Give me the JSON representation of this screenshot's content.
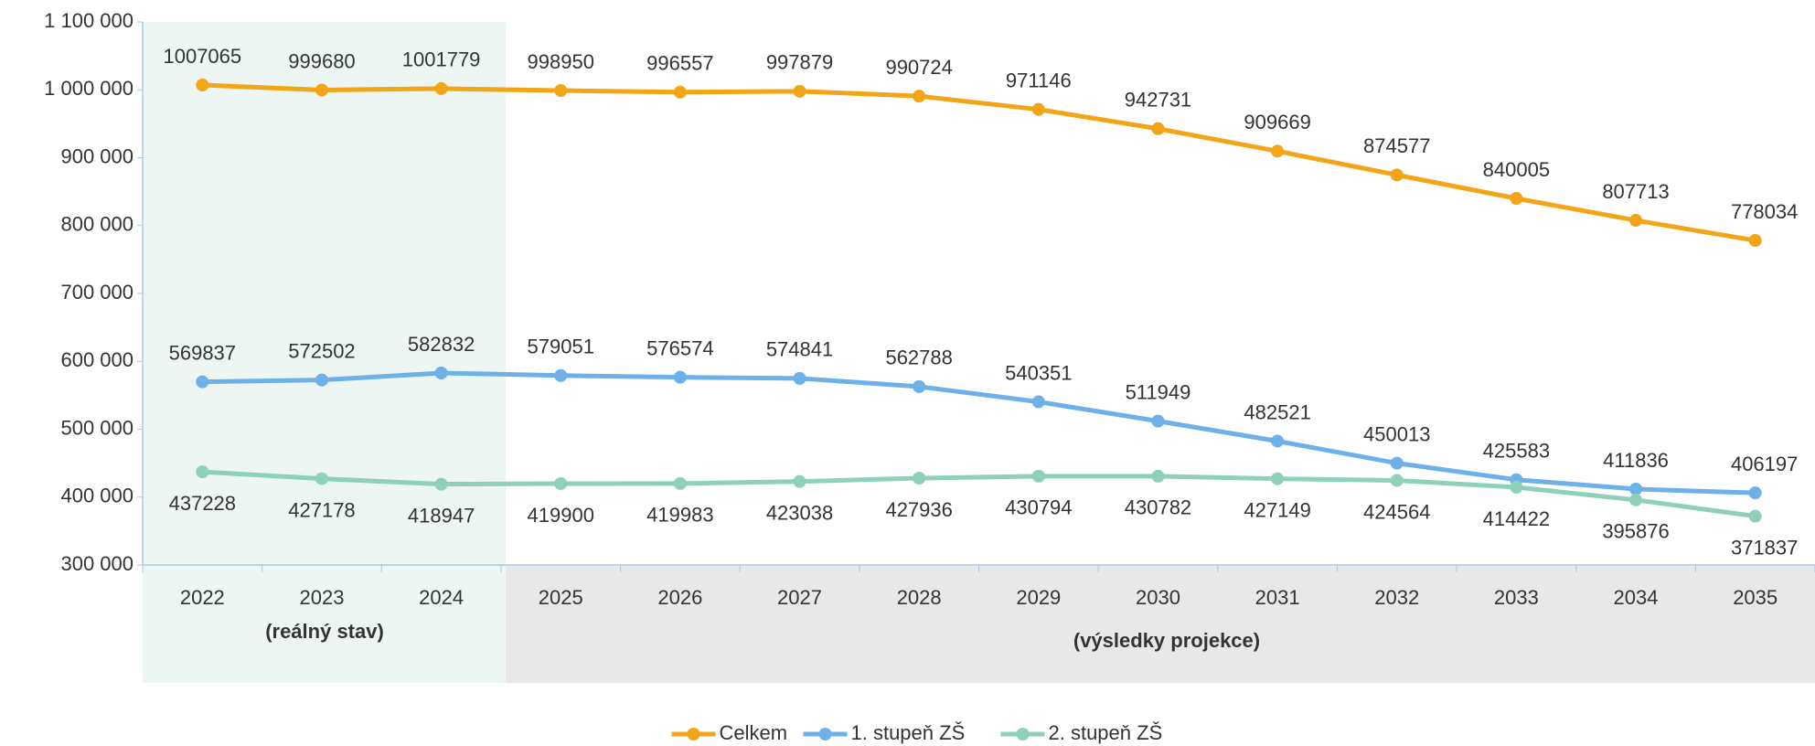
{
  "chart_data": {
    "type": "line",
    "categories": [
      "2022",
      "2023",
      "2024",
      "2025",
      "2026",
      "2027",
      "2028",
      "2029",
      "2030",
      "2031",
      "2032",
      "2033",
      "2034",
      "2035"
    ],
    "series": [
      {
        "name": "Celkem",
        "color": "#f2a516",
        "values": [
          1007065,
          999680,
          1001779,
          998950,
          996557,
          997879,
          990724,
          971146,
          942731,
          909669,
          874577,
          840005,
          807713,
          778034
        ]
      },
      {
        "name": "1. stupeň ZŠ",
        "color": "#6eb0e8",
        "values": [
          569837,
          572502,
          582832,
          579051,
          576574,
          574841,
          562788,
          540351,
          511949,
          482521,
          450013,
          425583,
          411836,
          406197
        ]
      },
      {
        "name": "2. stupeň ZŠ",
        "color": "#8fd0b8",
        "values": [
          437228,
          427178,
          418947,
          419900,
          419983,
          423038,
          427936,
          430794,
          430782,
          427149,
          424564,
          414422,
          395876,
          371837
        ]
      }
    ],
    "annotations": [
      "(reálný stav)",
      "(výsledky projekce)"
    ],
    "ylim": [
      300000,
      1100000
    ],
    "yticks": [
      {
        "value": 300000,
        "label": "300 000"
      },
      {
        "value": 400000,
        "label": "400 000"
      },
      {
        "value": 500000,
        "label": "500 000"
      },
      {
        "value": 600000,
        "label": "600 000"
      },
      {
        "value": 700000,
        "label": "700 000"
      },
      {
        "value": 800000,
        "label": "800 000"
      },
      {
        "value": 900000,
        "label": "900 000"
      },
      {
        "value": 1000000,
        "label": "1 000 000"
      },
      {
        "value": 1100000,
        "label": "1 100 000"
      }
    ],
    "grid": false,
    "legend": "bottom"
  }
}
